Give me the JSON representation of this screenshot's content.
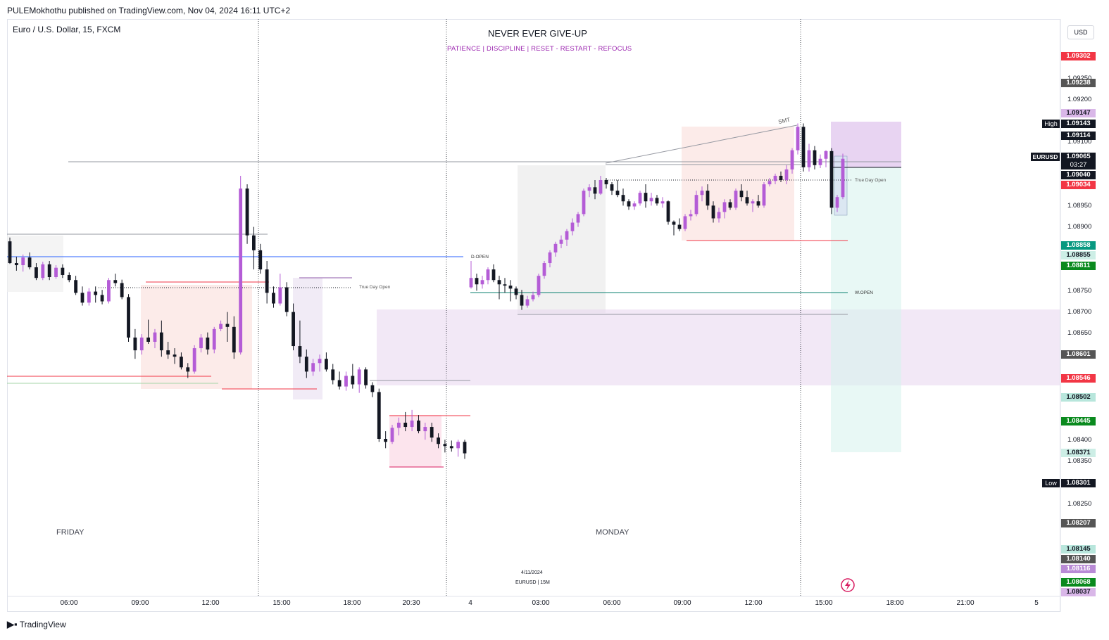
{
  "header": {
    "published": "PULEMokhothu published on TradingView.com, Nov 04, 2024 16:11 UTC+2"
  },
  "symbol": "Euro / U.S. Dollar, 15, FXCM",
  "titles": {
    "main": "NEVER EVER GIVE-UP",
    "sub": "PATIENCE  |  DISCIPLINE  |  RESET - RESTART - REFOCUS"
  },
  "currency": "USD",
  "annotations": {
    "smt": "SMT",
    "true_day_open_1": "True Day Open",
    "true_day_open_2": "True Day Open",
    "d_open": "D.OPEN",
    "w_open": "W.OPEN",
    "friday": "FRIDAY",
    "monday": "MONDAY",
    "date_stamp": "4/11/2024",
    "symbol_stamp": "EURUSD  |  15M"
  },
  "price_scale": {
    "labels": [
      "1.09250",
      "1.09200",
      "1.09100",
      "1.08950",
      "1.08900",
      "1.08750",
      "1.08700",
      "1.08650",
      "1.08400",
      "1.08350",
      "1.08250"
    ],
    "tags": [
      {
        "text": "1.09302",
        "color": "#f23645"
      },
      {
        "text": "1.09238",
        "color": "#555555"
      },
      {
        "text": "1.09147",
        "color": "#d9b7e8",
        "dark": true
      },
      {
        "text": "1.09143",
        "color": "#131722",
        "side": "High"
      },
      {
        "text": "1.09114",
        "color": "#131722"
      },
      {
        "text": "1.09065",
        "color": "#131722",
        "side": "EURUSD",
        "sub": "03:27"
      },
      {
        "text": "1.09040",
        "color": "#131722"
      },
      {
        "text": "1.09034",
        "color": "#f23645"
      },
      {
        "text": "1.08858",
        "color": "#089981"
      },
      {
        "text": "1.08855",
        "color": "#cdeee6",
        "dark": true
      },
      {
        "text": "1.08811",
        "color": "#0a8a1e"
      },
      {
        "text": "1.08601",
        "color": "#555555"
      },
      {
        "text": "1.08546",
        "color": "#f23645"
      },
      {
        "text": "1.08502",
        "color": "#b8e6dc",
        "dark": true
      },
      {
        "text": "1.08445",
        "color": "#0a8a1e"
      },
      {
        "text": "1.08371",
        "color": "#cdeee6",
        "dark": true
      },
      {
        "text": "1.08301",
        "color": "#131722",
        "side": "Low"
      },
      {
        "text": "1.08207",
        "color": "#555555"
      },
      {
        "text": "1.08145",
        "color": "#b8e6dc",
        "dark": true
      },
      {
        "text": "1.08140",
        "color": "#555555"
      },
      {
        "text": "1.08116",
        "color": "#b98bd6"
      },
      {
        "text": "1.08068",
        "color": "#0a8a1e"
      },
      {
        "text": "1.08037",
        "color": "#d9b7e8",
        "dark": true
      }
    ]
  },
  "time_axis": [
    "06:00",
    "09:00",
    "12:00",
    "15:00",
    "18:00",
    "20:30",
    "4",
    "03:00",
    "06:00",
    "09:00",
    "12:00",
    "15:00",
    "18:00",
    "21:00",
    "5"
  ],
  "chart_data": {
    "type": "candlestick",
    "interval": "15M",
    "series": "EURUSD",
    "candles": [
      {
        "o": 1.08866,
        "h": 1.08875,
        "l": 1.08813,
        "c": 1.08815
      },
      {
        "o": 1.08815,
        "h": 1.0883,
        "l": 1.08797,
        "c": 1.0881
      },
      {
        "o": 1.0881,
        "h": 1.08835,
        "l": 1.08795,
        "c": 1.08828
      },
      {
        "o": 1.08828,
        "h": 1.0884,
        "l": 1.088,
        "c": 1.08805
      },
      {
        "o": 1.08805,
        "h": 1.08815,
        "l": 1.08775,
        "c": 1.0878
      },
      {
        "o": 1.0878,
        "h": 1.08818,
        "l": 1.08775,
        "c": 1.08812
      },
      {
        "o": 1.08812,
        "h": 1.0882,
        "l": 1.08775,
        "c": 1.08782
      },
      {
        "o": 1.08782,
        "h": 1.0881,
        "l": 1.08778,
        "c": 1.08804
      },
      {
        "o": 1.08804,
        "h": 1.08812,
        "l": 1.0878,
        "c": 1.08787
      },
      {
        "o": 1.08787,
        "h": 1.08793,
        "l": 1.0877,
        "c": 1.08775
      },
      {
        "o": 1.08775,
        "h": 1.08785,
        "l": 1.0874,
        "c": 1.08745
      },
      {
        "o": 1.08745,
        "h": 1.0876,
        "l": 1.08715,
        "c": 1.08722
      },
      {
        "o": 1.08722,
        "h": 1.08756,
        "l": 1.08715,
        "c": 1.08748
      },
      {
        "o": 1.08748,
        "h": 1.0876,
        "l": 1.08722,
        "c": 1.0874
      },
      {
        "o": 1.0874,
        "h": 1.08752,
        "l": 1.08718,
        "c": 1.08725
      },
      {
        "o": 1.08725,
        "h": 1.0878,
        "l": 1.0872,
        "c": 1.08775
      },
      {
        "o": 1.08775,
        "h": 1.0879,
        "l": 1.0876,
        "c": 1.08768
      },
      {
        "o": 1.08768,
        "h": 1.08776,
        "l": 1.0873,
        "c": 1.08735
      },
      {
        "o": 1.08735,
        "h": 1.08742,
        "l": 1.0863,
        "c": 1.0864
      },
      {
        "o": 1.0864,
        "h": 1.0866,
        "l": 1.0859,
        "c": 1.0861
      },
      {
        "o": 1.0861,
        "h": 1.08648,
        "l": 1.086,
        "c": 1.0864
      },
      {
        "o": 1.0864,
        "h": 1.08682,
        "l": 1.08625,
        "c": 1.0863
      },
      {
        "o": 1.0863,
        "h": 1.0866,
        "l": 1.08615,
        "c": 1.08652
      },
      {
        "o": 1.08652,
        "h": 1.0868,
        "l": 1.08595,
        "c": 1.0861
      },
      {
        "o": 1.0861,
        "h": 1.0863,
        "l": 1.0859,
        "c": 1.086
      },
      {
        "o": 1.086,
        "h": 1.08615,
        "l": 1.08578,
        "c": 1.08595
      },
      {
        "o": 1.08595,
        "h": 1.08605,
        "l": 1.08565,
        "c": 1.0857
      },
      {
        "o": 1.0857,
        "h": 1.0858,
        "l": 1.08545,
        "c": 1.0856
      },
      {
        "o": 1.0856,
        "h": 1.08622,
        "l": 1.08555,
        "c": 1.08615
      },
      {
        "o": 1.08615,
        "h": 1.08648,
        "l": 1.08605,
        "c": 1.0864
      },
      {
        "o": 1.0864,
        "h": 1.08652,
        "l": 1.086,
        "c": 1.08612
      },
      {
        "o": 1.08612,
        "h": 1.08665,
        "l": 1.08603,
        "c": 1.0866
      },
      {
        "o": 1.0866,
        "h": 1.0868,
        "l": 1.08655,
        "c": 1.08672
      },
      {
        "o": 1.08672,
        "h": 1.087,
        "l": 1.0863,
        "c": 1.08665
      },
      {
        "o": 1.08665,
        "h": 1.0869,
        "l": 1.0859,
        "c": 1.08605
      },
      {
        "o": 1.08605,
        "h": 1.0902,
        "l": 1.086,
        "c": 1.0899
      },
      {
        "o": 1.0899,
        "h": 1.09,
        "l": 1.0886,
        "c": 1.0888
      },
      {
        "o": 1.0888,
        "h": 1.089,
        "l": 1.088,
        "c": 1.08845
      },
      {
        "o": 1.08845,
        "h": 1.0886,
        "l": 1.0879,
        "c": 1.088
      },
      {
        "o": 1.088,
        "h": 1.0882,
        "l": 1.0872,
        "c": 1.08745
      },
      {
        "o": 1.08745,
        "h": 1.0876,
        "l": 1.0871,
        "c": 1.0872
      },
      {
        "o": 1.0872,
        "h": 1.0879,
        "l": 1.08715,
        "c": 1.08758
      },
      {
        "o": 1.08758,
        "h": 1.0877,
        "l": 1.0869,
        "c": 1.087
      },
      {
        "o": 1.087,
        "h": 1.0872,
        "l": 1.0861,
        "c": 1.0862
      },
      {
        "o": 1.0862,
        "h": 1.0868,
        "l": 1.0858,
        "c": 1.08595
      },
      {
        "o": 1.08595,
        "h": 1.08612,
        "l": 1.08545,
        "c": 1.0856
      },
      {
        "o": 1.0856,
        "h": 1.0859,
        "l": 1.0855,
        "c": 1.0858
      },
      {
        "o": 1.0858,
        "h": 1.086,
        "l": 1.0856,
        "c": 1.0859
      },
      {
        "o": 1.0859,
        "h": 1.08605,
        "l": 1.0856,
        "c": 1.08565
      },
      {
        "o": 1.08565,
        "h": 1.08578,
        "l": 1.0853,
        "c": 1.0854
      },
      {
        "o": 1.0854,
        "h": 1.0856,
        "l": 1.08518,
        "c": 1.08525
      },
      {
        "o": 1.08525,
        "h": 1.0856,
        "l": 1.08515,
        "c": 1.0855
      },
      {
        "o": 1.0855,
        "h": 1.08578,
        "l": 1.0852,
        "c": 1.0853
      },
      {
        "o": 1.0853,
        "h": 1.0857,
        "l": 1.0851,
        "c": 1.08565
      },
      {
        "o": 1.08565,
        "h": 1.0857,
        "l": 1.0852,
        "c": 1.08528
      },
      {
        "o": 1.08528,
        "h": 1.08535,
        "l": 1.085,
        "c": 1.08512
      },
      {
        "o": 1.08512,
        "h": 1.0852,
        "l": 1.08395,
        "c": 1.08402
      },
      {
        "o": 1.08402,
        "h": 1.0842,
        "l": 1.0838,
        "c": 1.08395
      },
      {
        "o": 1.08395,
        "h": 1.08435,
        "l": 1.0839,
        "c": 1.08428
      },
      {
        "o": 1.08428,
        "h": 1.08452,
        "l": 1.0841,
        "c": 1.0844
      },
      {
        "o": 1.0844,
        "h": 1.08465,
        "l": 1.0842,
        "c": 1.0843
      },
      {
        "o": 1.0843,
        "h": 1.0847,
        "l": 1.0842,
        "c": 1.08445
      },
      {
        "o": 1.08445,
        "h": 1.08458,
        "l": 1.08415,
        "c": 1.0842
      },
      {
        "o": 1.0842,
        "h": 1.0844,
        "l": 1.084,
        "c": 1.0843
      },
      {
        "o": 1.0843,
        "h": 1.0844,
        "l": 1.08395,
        "c": 1.08405
      },
      {
        "o": 1.08405,
        "h": 1.08415,
        "l": 1.0838,
        "c": 1.0839
      },
      {
        "o": 1.0839,
        "h": 1.084,
        "l": 1.0837,
        "c": 1.08385
      },
      {
        "o": 1.08385,
        "h": 1.08398,
        "l": 1.08372,
        "c": 1.0838
      },
      {
        "o": 1.0838,
        "h": 1.084,
        "l": 1.0836,
        "c": 1.08395
      },
      {
        "o": 1.08395,
        "h": 1.084,
        "l": 1.08355,
        "c": 1.08368
      },
      {
        "o": 1.08758,
        "h": 1.0882,
        "l": 1.08755,
        "c": 1.0878
      },
      {
        "o": 1.0878,
        "h": 1.0879,
        "l": 1.0875,
        "c": 1.08765
      },
      {
        "o": 1.08765,
        "h": 1.08785,
        "l": 1.08755,
        "c": 1.08775
      },
      {
        "o": 1.08775,
        "h": 1.08805,
        "l": 1.08765,
        "c": 1.088
      },
      {
        "o": 1.088,
        "h": 1.08812,
        "l": 1.0877,
        "c": 1.08775
      },
      {
        "o": 1.08775,
        "h": 1.08785,
        "l": 1.0873,
        "c": 1.08765
      },
      {
        "o": 1.08765,
        "h": 1.0878,
        "l": 1.08745,
        "c": 1.08762
      },
      {
        "o": 1.08762,
        "h": 1.08775,
        "l": 1.08725,
        "c": 1.08755
      },
      {
        "o": 1.08755,
        "h": 1.0876,
        "l": 1.0873,
        "c": 1.0874
      },
      {
        "o": 1.0874,
        "h": 1.08752,
        "l": 1.08705,
        "c": 1.08715
      },
      {
        "o": 1.08715,
        "h": 1.08738,
        "l": 1.0871,
        "c": 1.0873
      },
      {
        "o": 1.0873,
        "h": 1.08748,
        "l": 1.08725,
        "c": 1.0874
      },
      {
        "o": 1.0874,
        "h": 1.0879,
        "l": 1.08735,
        "c": 1.08785
      },
      {
        "o": 1.08785,
        "h": 1.0882,
        "l": 1.08778,
        "c": 1.08815
      },
      {
        "o": 1.08815,
        "h": 1.08845,
        "l": 1.08805,
        "c": 1.0884
      },
      {
        "o": 1.0884,
        "h": 1.08865,
        "l": 1.0883,
        "c": 1.0886
      },
      {
        "o": 1.0886,
        "h": 1.0888,
        "l": 1.0885,
        "c": 1.0887
      },
      {
        "o": 1.0887,
        "h": 1.08895,
        "l": 1.08855,
        "c": 1.0889
      },
      {
        "o": 1.0889,
        "h": 1.0892,
        "l": 1.0888,
        "c": 1.0891
      },
      {
        "o": 1.0891,
        "h": 1.08935,
        "l": 1.089,
        "c": 1.0893
      },
      {
        "o": 1.0893,
        "h": 1.0899,
        "l": 1.08925,
        "c": 1.08985
      },
      {
        "o": 1.08985,
        "h": 1.09,
        "l": 1.0897,
        "c": 1.08993
      },
      {
        "o": 1.08993,
        "h": 1.0901,
        "l": 1.08965,
        "c": 1.08978
      },
      {
        "o": 1.08978,
        "h": 1.0902,
        "l": 1.08975,
        "c": 1.0901
      },
      {
        "o": 1.0901,
        "h": 1.09015,
        "l": 1.0899,
        "c": 1.09
      },
      {
        "o": 1.09,
        "h": 1.09005,
        "l": 1.08975,
        "c": 1.08985
      },
      {
        "o": 1.08985,
        "h": 1.0901,
        "l": 1.0897,
        "c": 1.08975
      },
      {
        "o": 1.08975,
        "h": 1.0899,
        "l": 1.0895,
        "c": 1.0896
      },
      {
        "o": 1.0896,
        "h": 1.08965,
        "l": 1.0894,
        "c": 1.08948
      },
      {
        "o": 1.08948,
        "h": 1.0896,
        "l": 1.0894,
        "c": 1.08955
      },
      {
        "o": 1.08955,
        "h": 1.08985,
        "l": 1.0895,
        "c": 1.0898
      },
      {
        "o": 1.0898,
        "h": 1.09,
        "l": 1.08945,
        "c": 1.0896
      },
      {
        "o": 1.0896,
        "h": 1.0898,
        "l": 1.0895,
        "c": 1.08968
      },
      {
        "o": 1.08968,
        "h": 1.08975,
        "l": 1.0895,
        "c": 1.08955
      },
      {
        "o": 1.08955,
        "h": 1.0897,
        "l": 1.08945,
        "c": 1.0896
      },
      {
        "o": 1.0896,
        "h": 1.08962,
        "l": 1.08905,
        "c": 1.08912
      },
      {
        "o": 1.08912,
        "h": 1.08915,
        "l": 1.0888,
        "c": 1.08905
      },
      {
        "o": 1.08905,
        "h": 1.0892,
        "l": 1.0889,
        "c": 1.08895
      },
      {
        "o": 1.08895,
        "h": 1.0893,
        "l": 1.0889,
        "c": 1.08925
      },
      {
        "o": 1.08925,
        "h": 1.0894,
        "l": 1.08915,
        "c": 1.0893
      },
      {
        "o": 1.0893,
        "h": 1.08985,
        "l": 1.08925,
        "c": 1.08975
      },
      {
        "o": 1.08975,
        "h": 1.08995,
        "l": 1.0896,
        "c": 1.08985
      },
      {
        "o": 1.08985,
        "h": 1.09,
        "l": 1.0894,
        "c": 1.0895
      },
      {
        "o": 1.0895,
        "h": 1.0896,
        "l": 1.0891,
        "c": 1.0892
      },
      {
        "o": 1.0892,
        "h": 1.08945,
        "l": 1.0891,
        "c": 1.08935
      },
      {
        "o": 1.08935,
        "h": 1.08965,
        "l": 1.0892,
        "c": 1.08958
      },
      {
        "o": 1.08958,
        "h": 1.08965,
        "l": 1.0894,
        "c": 1.08945
      },
      {
        "o": 1.08945,
        "h": 1.0899,
        "l": 1.0894,
        "c": 1.08985
      },
      {
        "o": 1.08985,
        "h": 1.09,
        "l": 1.0896,
        "c": 1.0897
      },
      {
        "o": 1.0897,
        "h": 1.08985,
        "l": 1.0895,
        "c": 1.08955
      },
      {
        "o": 1.08955,
        "h": 1.08965,
        "l": 1.08935,
        "c": 1.0896
      },
      {
        "o": 1.0896,
        "h": 1.08975,
        "l": 1.08945,
        "c": 1.0895
      },
      {
        "o": 1.0895,
        "h": 1.09005,
        "l": 1.08945,
        "c": 1.09
      },
      {
        "o": 1.09,
        "h": 1.09015,
        "l": 1.08995,
        "c": 1.09008
      },
      {
        "o": 1.09008,
        "h": 1.09025,
        "l": 1.09,
        "c": 1.0902
      },
      {
        "o": 1.0902,
        "h": 1.0903,
        "l": 1.09005,
        "c": 1.0901
      },
      {
        "o": 1.0901,
        "h": 1.09045,
        "l": 1.09,
        "c": 1.09035
      },
      {
        "o": 1.09035,
        "h": 1.09085,
        "l": 1.09025,
        "c": 1.0908
      },
      {
        "o": 1.0908,
        "h": 1.09143,
        "l": 1.0907,
        "c": 1.09135
      },
      {
        "o": 1.09135,
        "h": 1.09143,
        "l": 1.0903,
        "c": 1.0904
      },
      {
        "o": 1.0904,
        "h": 1.09095,
        "l": 1.0903,
        "c": 1.0908
      },
      {
        "o": 1.0908,
        "h": 1.0909,
        "l": 1.09035,
        "c": 1.09045
      },
      {
        "o": 1.09045,
        "h": 1.0907,
        "l": 1.09038,
        "c": 1.0906
      },
      {
        "o": 1.0906,
        "h": 1.0908,
        "l": 1.0904,
        "c": 1.09078
      },
      {
        "o": 1.09078,
        "h": 1.09085,
        "l": 1.0893,
        "c": 1.08945
      },
      {
        "o": 1.08945,
        "h": 1.08975,
        "l": 1.08935,
        "c": 1.0897
      },
      {
        "o": 1.0897,
        "h": 1.09072,
        "l": 1.08965,
        "c": 1.0906
      }
    ],
    "levels": {
      "high": 1.09143,
      "low": 1.08301,
      "last": 1.09065,
      "d_open": 1.08858,
      "w_open": 1.08755,
      "true_day_open_1": 1.08772,
      "true_day_open_2": 1.09026
    }
  },
  "footer": {
    "brand": "TradingView"
  }
}
